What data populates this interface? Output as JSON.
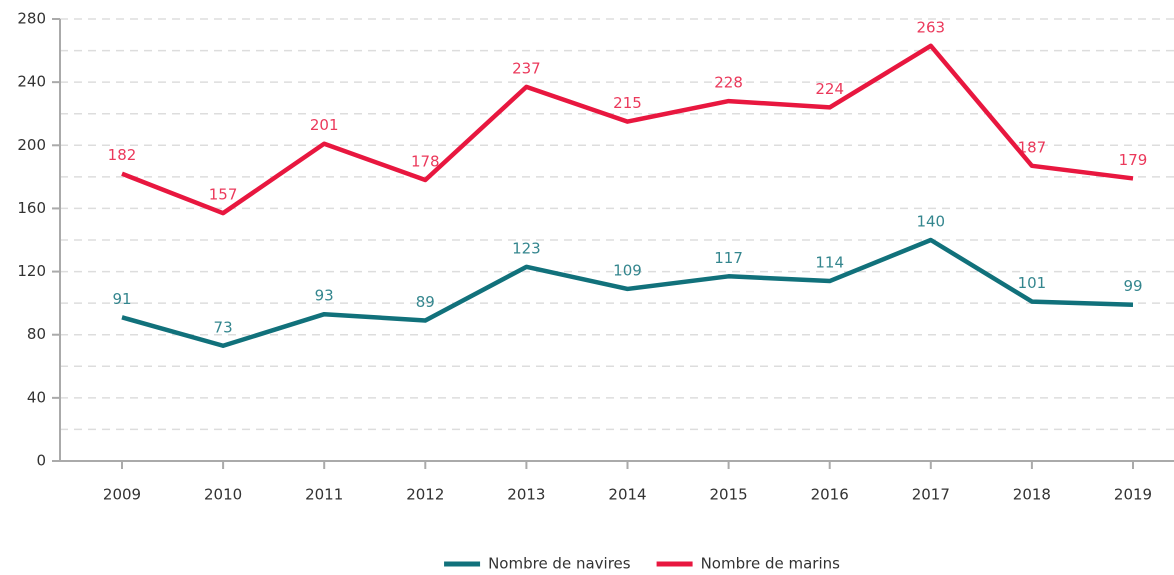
{
  "chart_data": {
    "type": "line",
    "categories": [
      "2009",
      "2010",
      "2011",
      "2012",
      "2013",
      "2014",
      "2015",
      "2016",
      "2017",
      "2018",
      "2019"
    ],
    "series": [
      {
        "name": "Nombre de navires",
        "color": "#11717b",
        "values": [
          91,
          73,
          93,
          89,
          123,
          109,
          117,
          114,
          140,
          101,
          99
        ]
      },
      {
        "name": "Nombre de marins",
        "color": "#e8173f",
        "values": [
          182,
          157,
          201,
          178,
          237,
          215,
          228,
          224,
          263,
          187,
          179
        ]
      }
    ],
    "ylim": [
      0,
      280
    ],
    "yticks": [
      0,
      40,
      80,
      120,
      160,
      200,
      240,
      280
    ],
    "minor_yticks": [
      20,
      60,
      100,
      140,
      180,
      220,
      260
    ],
    "grid": true,
    "data_labels": true,
    "legend": "bottom"
  }
}
